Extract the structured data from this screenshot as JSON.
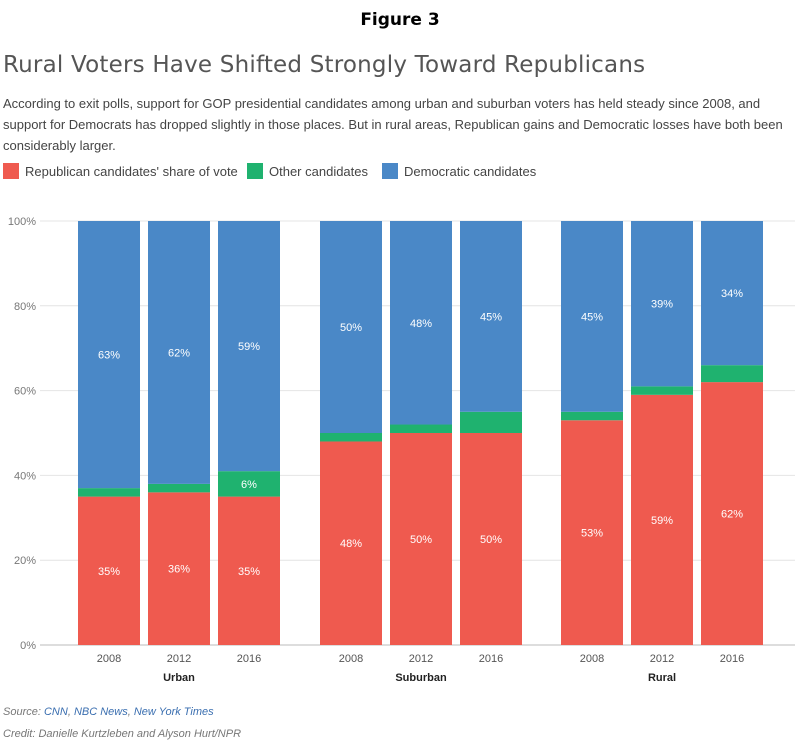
{
  "figure_label": "Figure 3",
  "title": "Rural Voters Have Shifted Strongly Toward Republicans",
  "subtitle": "According to exit polls, support for GOP presidential candidates among urban and suburban voters has held steady since 2008, and support for Democrats has dropped slightly in those places. But in rural areas, Republican gains and Democratic losses have both been considerably larger.",
  "legend": [
    {
      "label": "Republican candidates' share of vote",
      "color": "#ef5a4f"
    },
    {
      "label": "Other candidates",
      "color": "#1fb26f"
    },
    {
      "label": "Democratic candidates",
      "color": "#4a88c7"
    }
  ],
  "source": {
    "prefix": "Source: ",
    "links": [
      "CNN",
      "NBC News",
      "New York Times"
    ]
  },
  "credit": "Credit: Danielle Kurtzleben and Alyson Hurt/NPR",
  "chart_data": {
    "type": "bar",
    "stacked": true,
    "groups": [
      "Urban",
      "Suburban",
      "Rural"
    ],
    "categories": [
      "2008",
      "2012",
      "2016",
      "2008",
      "2012",
      "2016",
      "2008",
      "2012",
      "2016"
    ],
    "group_of_category": [
      "Urban",
      "Urban",
      "Urban",
      "Suburban",
      "Suburban",
      "Suburban",
      "Rural",
      "Rural",
      "Rural"
    ],
    "series": [
      {
        "name": "Republican candidates' share of vote",
        "values": [
          35,
          36,
          35,
          48,
          50,
          50,
          53,
          59,
          62
        ],
        "color": "#ef5a4f"
      },
      {
        "name": "Other candidates",
        "values": [
          2,
          2,
          6,
          2,
          2,
          5,
          2,
          2,
          4
        ],
        "color": "#1fb26f"
      },
      {
        "name": "Democratic candidates",
        "values": [
          63,
          62,
          59,
          50,
          48,
          45,
          45,
          39,
          34
        ],
        "color": "#4a88c7"
      }
    ],
    "data_labels": [
      [
        "35%",
        "36%",
        "35%",
        "48%",
        "50%",
        "50%",
        "53%",
        "59%",
        "62%"
      ],
      [
        "",
        "",
        "6%",
        "",
        "",
        "",
        "",
        "",
        ""
      ],
      [
        "63%",
        "62%",
        "59%",
        "50%",
        "48%",
        "45%",
        "45%",
        "39%",
        "34%"
      ]
    ],
    "yticks": [
      "0%",
      "20%",
      "40%",
      "60%",
      "80%",
      "100%"
    ],
    "ylim": [
      0,
      100
    ],
    "grid": true
  }
}
